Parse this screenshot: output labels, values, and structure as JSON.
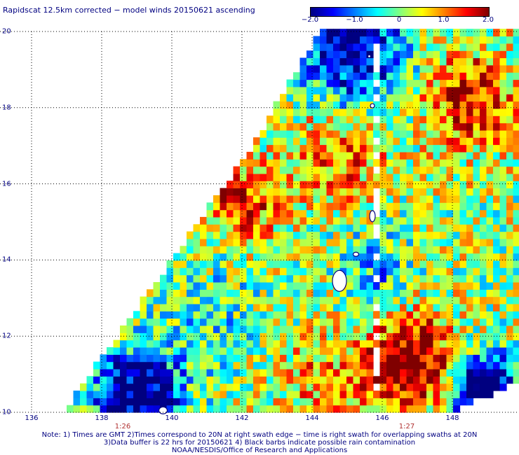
{
  "title": "Rapidscat 12.5km corrected − model winds 20150621 ascending",
  "colorbar": {
    "ticks": [
      "−2.0",
      "−1.0",
      "0",
      "1.0",
      "2.0"
    ],
    "tick_values": [
      -2.0,
      -1.0,
      0.0,
      1.0,
      2.0
    ],
    "range": [
      -2.0,
      2.0
    ],
    "colors": [
      "#000080",
      "#0000ff",
      "#0080ff",
      "#00ffff",
      "#80ff80",
      "#ffff00",
      "#ff8000",
      "#ff0000",
      "#800000"
    ]
  },
  "map": {
    "lat_labels": [
      "20",
      "18",
      "16",
      "14",
      "12",
      "10"
    ],
    "lat_values": [
      20,
      18,
      16,
      14,
      12,
      10
    ],
    "lon_labels": [
      "136",
      "138",
      "140",
      "142",
      "144",
      "146",
      "148"
    ],
    "lon_values": [
      136,
      138,
      140,
      142,
      144,
      146,
      148
    ],
    "lat_range": [
      10,
      20
    ],
    "lon_range": [
      135.1,
      149.9
    ],
    "swath_edges": {
      "left": [
        [
          136.9,
          10.0
        ],
        [
          142.3,
          17.0
        ],
        [
          144.2,
          20.0
        ]
      ],
      "right": [
        [
          148.0,
          10.0
        ],
        [
          149.9,
          10.8
        ],
        [
          149.9,
          20.0
        ]
      ]
    },
    "time_labels": [
      {
        "text": "1:26",
        "lon": 138.6
      },
      {
        "text": "1:27",
        "lon": 146.7
      }
    ]
  },
  "notes": [
    "Note: 1) Times are GMT 2)Times correspond to 20N at right swath edge − time is right swath for overlapping swaths at 20N",
    "3)Data buffer is 22 hrs for 20150621 4) Black barbs indicate possible rain contamination",
    "NOAA/NESDIS/Office of Research and Applications"
  ]
}
